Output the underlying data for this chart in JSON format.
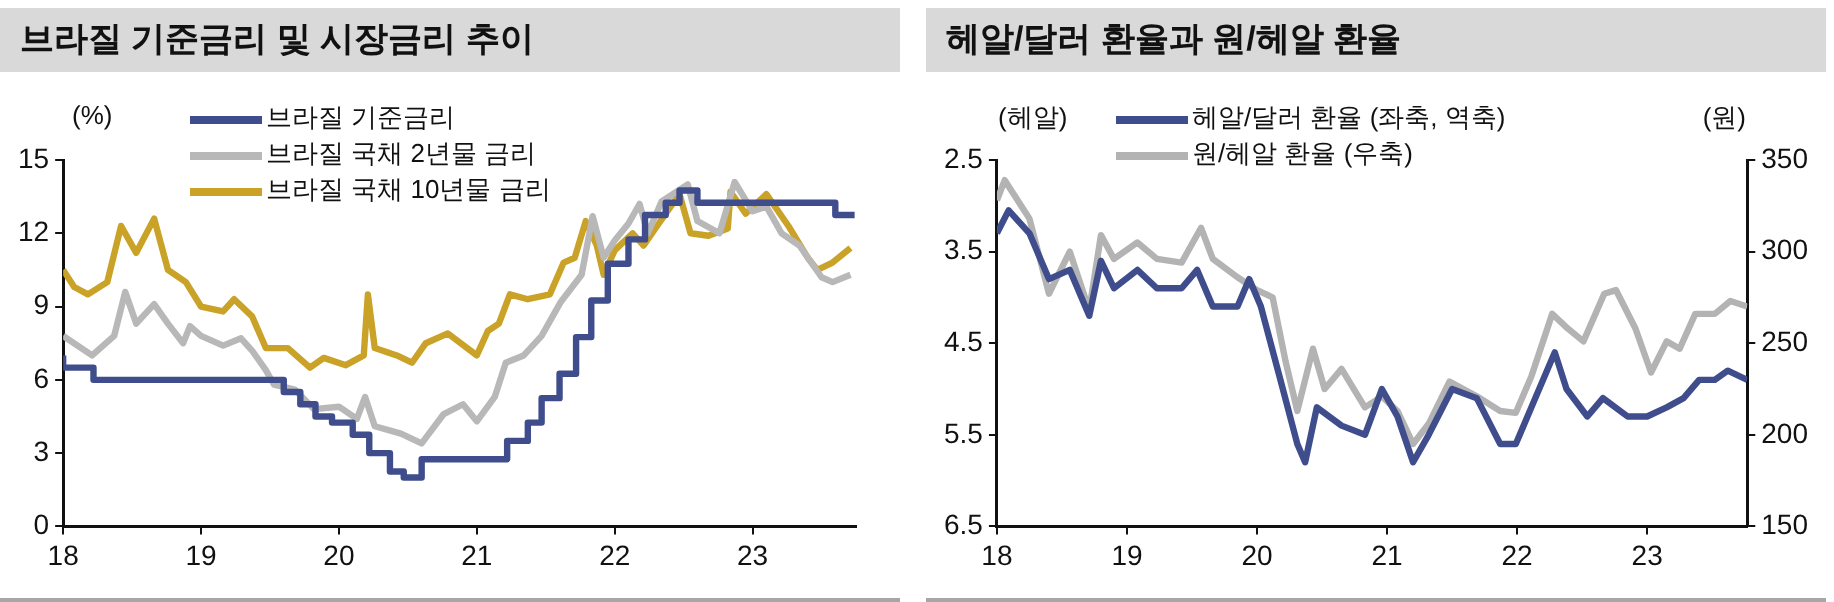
{
  "chart_data": [
    {
      "type": "line",
      "title": "브라질 기준금리 및 시장금리 추이",
      "ylabel": "(%)",
      "legend": "top left",
      "grid": false,
      "marker": "none",
      "line_style": "solid",
      "xlim": [
        2018,
        2023.75
      ],
      "xticks": [
        {
          "value": 2018,
          "label": "18"
        },
        {
          "value": 2019,
          "label": "19"
        },
        {
          "value": 2020,
          "label": "20"
        },
        {
          "value": 2021,
          "label": "21"
        },
        {
          "value": 2022,
          "label": "22"
        },
        {
          "value": 2023,
          "label": "23"
        }
      ],
      "ylim": [
        0,
        15
      ],
      "yticks": [
        0,
        3,
        6,
        9,
        12,
        15
      ],
      "series": [
        {
          "name": "브라질 기준금리",
          "type": "step",
          "color": "#3f4d8c",
          "x": [
            2018.0,
            2018.22,
            2019.6,
            2019.72,
            2019.83,
            2019.95,
            2020.1,
            2020.22,
            2020.37,
            2020.47,
            2020.6,
            2021.22,
            2021.37,
            2021.47,
            2021.6,
            2021.72,
            2021.83,
            2021.95,
            2022.1,
            2022.22,
            2022.37,
            2022.47,
            2022.6,
            2023.6,
            2023.72,
            2023.74
          ],
          "values": [
            7,
            6.5,
            6,
            5.5,
            5,
            4.5,
            4.25,
            3.75,
            3,
            2.25,
            2,
            2.75,
            3.5,
            4.25,
            5.25,
            6.25,
            7.75,
            9.25,
            10.75,
            11.75,
            12.75,
            13.25,
            13.75,
            13.25,
            12.75,
            12.75
          ]
        },
        {
          "name": "브라질 국채 2년물 금리",
          "type": "line",
          "color": "#b8b8b8",
          "x": [
            2018.0,
            2018.21,
            2018.37,
            2018.45,
            2018.53,
            2018.66,
            2018.76,
            2018.87,
            2018.92,
            2019.0,
            2019.16,
            2019.29,
            2019.37,
            2019.47,
            2019.53,
            2019.68,
            2019.82,
            2020.0,
            2020.13,
            2020.19,
            2020.26,
            2020.45,
            2020.6,
            2020.76,
            2020.9,
            2021.0,
            2021.13,
            2021.21,
            2021.34,
            2021.47,
            2021.61,
            2021.76,
            2021.84,
            2021.92,
            2022.0,
            2022.1,
            2022.18,
            2022.24,
            2022.34,
            2022.53,
            2022.6,
            2022.76,
            2022.87,
            2023.0,
            2023.1,
            2023.21,
            2023.34,
            2023.5,
            2023.58,
            2023.71
          ],
          "values": [
            7.8,
            7.0,
            7.8,
            9.6,
            8.3,
            9.1,
            8.3,
            7.5,
            8.2,
            7.8,
            7.4,
            7.7,
            7.2,
            6.4,
            5.8,
            5.6,
            4.8,
            4.9,
            4.4,
            5.3,
            4.1,
            3.8,
            3.4,
            4.6,
            5.0,
            4.3,
            5.3,
            6.7,
            7.0,
            7.8,
            9.2,
            10.3,
            12.7,
            11.0,
            11.7,
            12.4,
            13.2,
            12.0,
            13.3,
            14.0,
            12.5,
            12.0,
            14.1,
            12.9,
            13.1,
            12.0,
            11.5,
            10.2,
            10.0,
            10.3
          ]
        },
        {
          "name": "브라질 국채 10년물 금리",
          "type": "line",
          "color": "#c9a227",
          "x": [
            2018.0,
            2018.08,
            2018.18,
            2018.32,
            2018.42,
            2018.53,
            2018.66,
            2018.76,
            2018.89,
            2019.0,
            2019.16,
            2019.24,
            2019.37,
            2019.47,
            2019.63,
            2019.79,
            2019.89,
            2020.05,
            2020.18,
            2020.21,
            2020.26,
            2020.42,
            2020.53,
            2020.63,
            2020.79,
            2021.0,
            2021.08,
            2021.16,
            2021.24,
            2021.37,
            2021.53,
            2021.63,
            2021.71,
            2021.79,
            2021.87,
            2021.92,
            2022.0,
            2022.13,
            2022.21,
            2022.32,
            2022.47,
            2022.55,
            2022.68,
            2022.82,
            2022.84,
            2022.95,
            2023.1,
            2023.26,
            2023.4,
            2023.47,
            2023.58,
            2023.71
          ],
          "values": [
            10.5,
            9.8,
            9.5,
            10.0,
            12.3,
            11.2,
            12.6,
            10.5,
            10.0,
            9.0,
            8.8,
            9.3,
            8.6,
            7.3,
            7.3,
            6.5,
            6.9,
            6.6,
            7.0,
            9.5,
            7.3,
            7.0,
            6.7,
            7.5,
            7.9,
            7.0,
            8.0,
            8.3,
            9.5,
            9.3,
            9.5,
            10.8,
            11.0,
            12.5,
            11.5,
            10.3,
            11.3,
            12.0,
            11.5,
            12.4,
            13.6,
            12.0,
            11.9,
            12.2,
            13.7,
            12.8,
            13.6,
            12.3,
            11.0,
            10.5,
            10.8,
            11.4
          ]
        }
      ]
    },
    {
      "type": "line",
      "title": "헤알/달러 환율과 원/헤알 환율",
      "ylabel": "(헤알)",
      "y2label": "(원)",
      "legend": "top left",
      "grid": false,
      "marker": "none",
      "line_style": "solid",
      "xlim": [
        2018,
        2023.77
      ],
      "xticks": [
        {
          "value": 2018,
          "label": "18"
        },
        {
          "value": 2019,
          "label": "19"
        },
        {
          "value": 2020,
          "label": "20"
        },
        {
          "value": 2021,
          "label": "21"
        },
        {
          "value": 2022,
          "label": "22"
        },
        {
          "value": 2023,
          "label": "23"
        }
      ],
      "ylim": [
        6.5,
        2.5
      ],
      "yticks": [
        2.5,
        3.5,
        4.5,
        5.5,
        6.5
      ],
      "y2lim": [
        150,
        350
      ],
      "y2ticks": [
        150,
        200,
        250,
        300,
        350
      ],
      "series": [
        {
          "name": "헤알/달러 환율 (좌축, 역축)",
          "type": "line",
          "color": "#3f4d8c",
          "x": [
            2018.0,
            2018.09,
            2018.25,
            2018.4,
            2018.56,
            2018.71,
            2018.8,
            2018.9,
            2019.08,
            2019.23,
            2019.42,
            2019.54,
            2019.66,
            2019.85,
            2019.94,
            2020.03,
            2020.18,
            2020.31,
            2020.37,
            2020.46,
            2020.65,
            2020.83,
            2020.96,
            2021.08,
            2021.2,
            2021.32,
            2021.5,
            2021.69,
            2021.87,
            2021.99,
            2022.11,
            2022.29,
            2022.38,
            2022.54,
            2022.66,
            2022.85,
            2023.0,
            2023.15,
            2023.28,
            2023.4,
            2023.52,
            2023.62,
            2023.77
          ],
          "values": [
            3.3,
            3.05,
            3.3,
            3.8,
            3.7,
            4.2,
            3.6,
            3.9,
            3.7,
            3.9,
            3.9,
            3.7,
            4.1,
            4.1,
            3.8,
            4.1,
            4.9,
            5.6,
            5.8,
            5.2,
            5.4,
            5.5,
            5.0,
            5.3,
            5.8,
            5.5,
            5.0,
            5.1,
            5.6,
            5.6,
            5.2,
            4.6,
            5.0,
            5.3,
            5.1,
            5.3,
            5.3,
            5.2,
            5.1,
            4.9,
            4.9,
            4.8,
            4.9
          ]
        },
        {
          "name": "원/헤알 환율 (우축)",
          "type": "line",
          "axis": "y2",
          "color": "#b3b3b3",
          "x": [
            2018.0,
            2018.06,
            2018.25,
            2018.4,
            2018.56,
            2018.71,
            2018.8,
            2018.9,
            2019.08,
            2019.23,
            2019.42,
            2019.57,
            2019.66,
            2019.85,
            2020.0,
            2020.12,
            2020.22,
            2020.31,
            2020.43,
            2020.52,
            2020.65,
            2020.83,
            2020.96,
            2021.08,
            2021.2,
            2021.32,
            2021.48,
            2021.69,
            2021.87,
            2021.99,
            2022.11,
            2022.27,
            2022.39,
            2022.51,
            2022.67,
            2022.76,
            2022.91,
            2023.03,
            2023.15,
            2023.25,
            2023.37,
            2023.52,
            2023.64,
            2023.77
          ],
          "values": [
            328,
            339,
            318,
            277,
            300,
            268,
            309,
            296,
            305,
            296,
            294,
            313,
            296,
            286,
            279,
            275,
            240,
            213,
            247,
            225,
            236,
            215,
            221,
            213,
            195,
            206,
            229,
            221,
            213,
            212,
            232,
            266,
            258,
            251,
            277,
            279,
            258,
            234,
            251,
            247,
            266,
            266,
            273,
            270
          ]
        }
      ]
    }
  ]
}
